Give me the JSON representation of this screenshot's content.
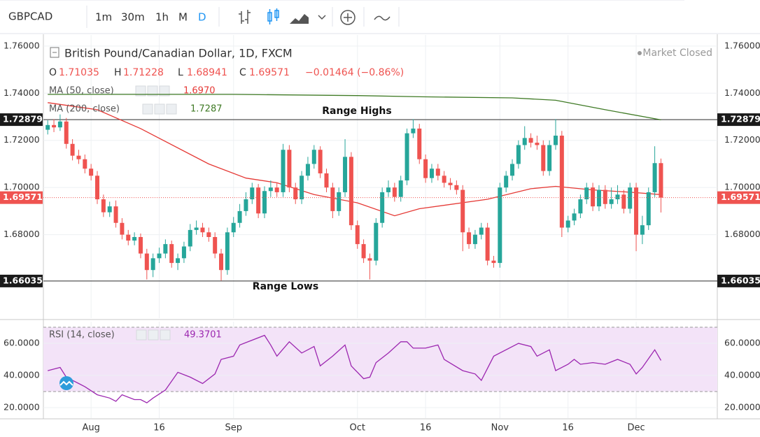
{
  "toolbar": {
    "symbol": "GBPCAD",
    "intervals": [
      "1m",
      "30m",
      "1h",
      "M",
      "D"
    ]
  },
  "chart_data": [
    {
      "type": "candlestick",
      "title": "British Pound/Canadian Dollar, 1D, FXCM",
      "status": "Market Closed",
      "ohlc_labels": [
        "O",
        "H",
        "L",
        "C"
      ],
      "change": "−0.01464 (−0.86%)",
      "up_color": "#26a69a",
      "down_color": "#ef5350",
      "xlim": [
        -0.7,
        108.1
      ],
      "xticks": [
        {
          "value": 7,
          "label": "Aug"
        },
        {
          "value": 18,
          "label": "16"
        },
        {
          "value": 30,
          "label": "Sep"
        },
        {
          "value": 50,
          "label": "Oct"
        },
        {
          "value": 61,
          "label": "16"
        },
        {
          "value": 73,
          "label": "Nov"
        },
        {
          "value": 84,
          "label": "16"
        },
        {
          "value": 95,
          "label": "Dec"
        }
      ],
      "ylim": [
        1.6446,
        1.7647
      ],
      "yticks": [
        {
          "value": 1.76,
          "label": "1.76000"
        },
        {
          "value": 1.74,
          "label": "1.74000"
        },
        {
          "value": 1.72,
          "label": "1.72000"
        },
        {
          "value": 1.7,
          "label": "1.70000"
        },
        {
          "value": 1.68,
          "label": "1.68000"
        }
      ],
      "grid": true,
      "levels": [
        {
          "value": 1.72879,
          "text": "Range Highs"
        },
        {
          "value": 1.66035,
          "text": "Range Lows"
        }
      ],
      "ohlc": [
        [
          1.7245,
          1.7285,
          1.7225,
          1.7265
        ],
        [
          1.7265,
          1.729,
          1.7235,
          1.7255
        ],
        [
          1.7255,
          1.731,
          1.724,
          1.728
        ],
        [
          1.728,
          1.7295,
          1.7165,
          1.7185
        ],
        [
          1.7185,
          1.7205,
          1.7115,
          1.7135
        ],
        [
          1.7135,
          1.716,
          1.71,
          1.712
        ],
        [
          1.712,
          1.714,
          1.706,
          1.708
        ],
        [
          1.708,
          1.71,
          1.703,
          1.705
        ],
        [
          1.705,
          1.707,
          1.693,
          1.695
        ],
        [
          1.695,
          1.697,
          1.6875,
          1.6895
        ],
        [
          1.6895,
          1.694,
          1.6875,
          1.692
        ],
        [
          1.692,
          1.6945,
          1.683,
          1.685
        ],
        [
          1.685,
          1.687,
          1.678,
          1.68
        ],
        [
          1.68,
          1.682,
          1.6755,
          1.6775
        ],
        [
          1.6775,
          1.681,
          1.6755,
          1.679
        ],
        [
          1.679,
          1.6805,
          1.67,
          1.672
        ],
        [
          1.672,
          1.674,
          1.661,
          1.665
        ],
        [
          1.665,
          1.672,
          1.662,
          1.67
        ],
        [
          1.67,
          1.6745,
          1.668,
          1.672
        ],
        [
          1.672,
          1.678,
          1.67,
          1.676
        ],
        [
          1.676,
          1.6775,
          1.666,
          1.668
        ],
        [
          1.668,
          1.672,
          1.665,
          1.67
        ],
        [
          1.67,
          1.677,
          1.668,
          1.675
        ],
        [
          1.675,
          1.6845,
          1.673,
          1.682
        ],
        [
          1.682,
          1.686,
          1.68,
          1.683
        ],
        [
          1.683,
          1.685,
          1.679,
          1.681
        ],
        [
          1.681,
          1.683,
          1.677,
          1.679
        ],
        [
          1.679,
          1.681,
          1.67,
          1.672
        ],
        [
          1.672,
          1.674,
          1.6605,
          1.665
        ],
        [
          1.665,
          1.683,
          1.663,
          1.681
        ],
        [
          1.681,
          1.6875,
          1.679,
          1.685
        ],
        [
          1.685,
          1.693,
          1.683,
          1.69
        ],
        [
          1.69,
          1.698,
          1.688,
          1.695
        ],
        [
          1.695,
          1.702,
          1.693,
          1.7
        ],
        [
          1.7,
          1.7015,
          1.687,
          1.689
        ],
        [
          1.689,
          1.7005,
          1.687,
          1.6985
        ],
        [
          1.6985,
          1.703,
          1.696,
          1.7
        ],
        [
          1.7,
          1.702,
          1.696,
          1.698
        ],
        [
          1.698,
          1.7185,
          1.696,
          1.716
        ],
        [
          1.716,
          1.718,
          1.698,
          1.7
        ],
        [
          1.7,
          1.702,
          1.693,
          1.695
        ],
        [
          1.695,
          1.707,
          1.693,
          1.705
        ],
        [
          1.705,
          1.713,
          1.703,
          1.71
        ],
        [
          1.71,
          1.718,
          1.708,
          1.716
        ],
        [
          1.716,
          1.7175,
          1.704,
          1.706
        ],
        [
          1.706,
          1.708,
          1.698,
          1.7
        ],
        [
          1.7,
          1.702,
          1.687,
          1.69
        ],
        [
          1.69,
          1.7,
          1.688,
          1.698
        ],
        [
          1.698,
          1.7205,
          1.696,
          1.713
        ],
        [
          1.713,
          1.715,
          1.682,
          1.684
        ],
        [
          1.684,
          1.686,
          1.674,
          1.676
        ],
        [
          1.676,
          1.678,
          1.668,
          1.67
        ],
        [
          1.67,
          1.672,
          1.661,
          1.669
        ],
        [
          1.669,
          1.687,
          1.667,
          1.685
        ],
        [
          1.685,
          1.7,
          1.683,
          1.698
        ],
        [
          1.698,
          1.703,
          1.696,
          1.7
        ],
        [
          1.7,
          1.702,
          1.694,
          1.696
        ],
        [
          1.696,
          1.705,
          1.694,
          1.703
        ],
        [
          1.703,
          1.725,
          1.701,
          1.723
        ],
        [
          1.723,
          1.729,
          1.721,
          1.725
        ],
        [
          1.725,
          1.727,
          1.71,
          1.712
        ],
        [
          1.712,
          1.714,
          1.702,
          1.704
        ],
        [
          1.704,
          1.71,
          1.702,
          1.708
        ],
        [
          1.708,
          1.71,
          1.703,
          1.705
        ],
        [
          1.705,
          1.707,
          1.7,
          1.702
        ],
        [
          1.702,
          1.704,
          1.699,
          1.701
        ],
        [
          1.701,
          1.703,
          1.697,
          1.699
        ],
        [
          1.699,
          1.701,
          1.673,
          1.681
        ],
        [
          1.681,
          1.683,
          1.674,
          1.676
        ],
        [
          1.676,
          1.682,
          1.674,
          1.68
        ],
        [
          1.68,
          1.685,
          1.678,
          1.683
        ],
        [
          1.683,
          1.685,
          1.667,
          1.669
        ],
        [
          1.669,
          1.671,
          1.666,
          1.668
        ],
        [
          1.668,
          1.702,
          1.666,
          1.7
        ],
        [
          1.7,
          1.707,
          1.698,
          1.705
        ],
        [
          1.705,
          1.712,
          1.703,
          1.71
        ],
        [
          1.71,
          1.72,
          1.708,
          1.718
        ],
        [
          1.718,
          1.726,
          1.716,
          1.721
        ],
        [
          1.721,
          1.723,
          1.717,
          1.719
        ],
        [
          1.719,
          1.722,
          1.716,
          1.718
        ],
        [
          1.718,
          1.72,
          1.705,
          1.707
        ],
        [
          1.707,
          1.72,
          1.705,
          1.718
        ],
        [
          1.718,
          1.729,
          1.716,
          1.722
        ],
        [
          1.722,
          1.724,
          1.679,
          1.683
        ],
        [
          1.683,
          1.688,
          1.681,
          1.686
        ],
        [
          1.686,
          1.691,
          1.684,
          1.689
        ],
        [
          1.689,
          1.697,
          1.687,
          1.695
        ],
        [
          1.695,
          1.702,
          1.693,
          1.7
        ],
        [
          1.7,
          1.702,
          1.69,
          1.692
        ],
        [
          1.692,
          1.701,
          1.69,
          1.699
        ],
        [
          1.699,
          1.701,
          1.691,
          1.693
        ],
        [
          1.693,
          1.7,
          1.691,
          1.695
        ],
        [
          1.695,
          1.701,
          1.693,
          1.697
        ],
        [
          1.697,
          1.699,
          1.689,
          1.691
        ],
        [
          1.691,
          1.702,
          1.689,
          1.7
        ],
        [
          1.7,
          1.702,
          1.673,
          1.68
        ],
        [
          1.68,
          1.688,
          1.676,
          1.684
        ],
        [
          1.684,
          1.7,
          1.682,
          1.698
        ],
        [
          1.698,
          1.7175,
          1.696,
          1.71035
        ],
        [
          1.71035,
          1.71228,
          1.68941,
          1.69571
        ]
      ],
      "series": [
        {
          "name": "MA (50, close)",
          "color": "#e53935",
          "value_label": "1.6970",
          "x": [
            0,
            8,
            15,
            26,
            32,
            37,
            43,
            50,
            56,
            60,
            71,
            78,
            82,
            88,
            94,
            99
          ],
          "values": [
            1.736,
            1.733,
            1.725,
            1.71,
            1.704,
            1.702,
            1.697,
            1.6935,
            1.688,
            1.691,
            1.695,
            1.6995,
            1.7005,
            1.699,
            1.698,
            1.697
          ]
        },
        {
          "name": "MA (200, close)",
          "color": "#3f7a25",
          "x": [
            0,
            30,
            50,
            60,
            75,
            82,
            90,
            99
          ],
          "values": [
            1.7395,
            1.7395,
            1.739,
            1.7385,
            1.738,
            1.737,
            1.733,
            1.7287
          ]
        }
      ]
    },
    {
      "type": "line",
      "xlim": [
        -0.7,
        108.1
      ],
      "ylim": [
        13.5,
        73.5
      ],
      "yticks": [
        {
          "value": 60,
          "label": "60.0000"
        },
        {
          "value": 40,
          "label": "40.0000"
        },
        {
          "value": 20,
          "label": "20.0000"
        }
      ],
      "band": [
        30,
        70
      ],
      "band_color": "#f3e3f8",
      "series": [
        {
          "name": "RSI (14, close)",
          "color": "#9c27b0",
          "x": [
            0,
            2,
            3,
            5,
            6,
            8,
            10,
            11,
            12,
            14,
            15,
            16,
            17,
            19,
            21,
            23,
            25,
            27,
            28,
            30,
            31,
            35,
            36,
            37,
            39,
            41,
            43,
            44,
            46,
            48,
            49,
            51,
            52,
            53,
            55,
            57,
            58,
            59,
            61,
            63,
            64,
            67,
            69,
            70,
            72,
            76,
            78,
            79,
            81,
            82,
            84,
            85,
            86,
            88,
            90,
            92,
            94,
            95,
            96,
            98,
            99
          ],
          "values": [
            43,
            45,
            39,
            35,
            33,
            28,
            26,
            24,
            28,
            25,
            25,
            23,
            26,
            31,
            42,
            39,
            35,
            41,
            50,
            52,
            59,
            65,
            59,
            52,
            61,
            54,
            58,
            46,
            52,
            59,
            46,
            38,
            39,
            48,
            54,
            61,
            61,
            57,
            57,
            59,
            50,
            43,
            41,
            37,
            52,
            60,
            58,
            52,
            56,
            43,
            47,
            50,
            47,
            48,
            47,
            50,
            47,
            41,
            45,
            56,
            49.3701
          ]
        }
      ]
    }
  ]
}
